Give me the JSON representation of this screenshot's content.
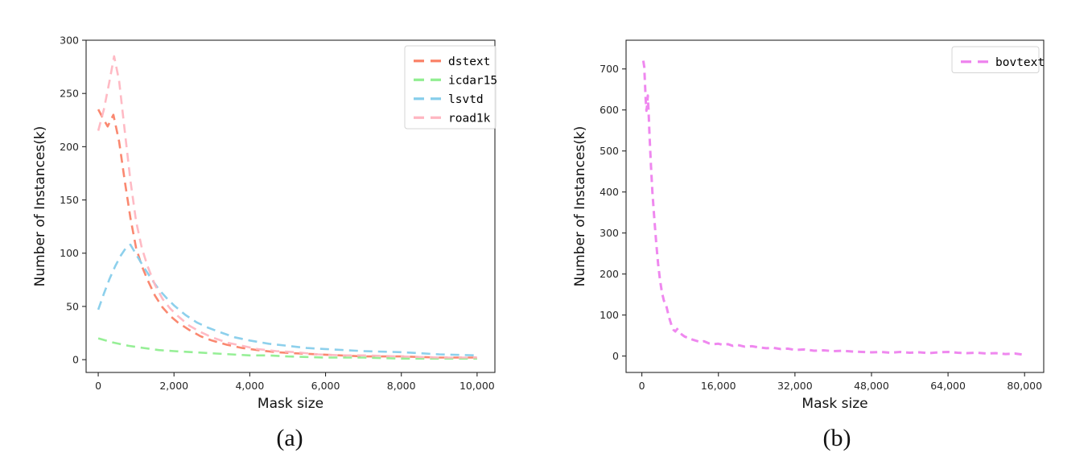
{
  "figure": {
    "background": "#ffffff",
    "axis_color": "#262626",
    "tick_label_color": "#262626",
    "captions": {
      "a": "(a)",
      "b": "(b)"
    }
  },
  "chart_data": [
    {
      "id": "a",
      "type": "line",
      "title": "",
      "xlabel": "Mask size",
      "ylabel": "Number of Instances(k)",
      "xlim": [
        -320,
        10470
      ],
      "ylim": [
        -12,
        300
      ],
      "xticks": [
        0,
        2000,
        4000,
        6000,
        8000,
        10000
      ],
      "xtick_labels": [
        "0",
        "2,000",
        "4,000",
        "6,000",
        "8,000",
        "10,000"
      ],
      "yticks": [
        0,
        50,
        100,
        150,
        200,
        250,
        300
      ],
      "ytick_labels": [
        "0",
        "50",
        "100",
        "150",
        "200",
        "250",
        "300"
      ],
      "grid": false,
      "legend_position": "upper right",
      "line_style": "dashed",
      "series": [
        {
          "name": "dstext",
          "color": "#fa8268",
          "points": [
            [
              0,
              235
            ],
            [
              120,
              227
            ],
            [
              250,
              219
            ],
            [
              400,
              230
            ],
            [
              550,
              205
            ],
            [
              700,
              168
            ],
            [
              850,
              133
            ],
            [
              1000,
              105
            ],
            [
              1150,
              88
            ],
            [
              1300,
              75
            ],
            [
              1500,
              60
            ],
            [
              1700,
              49
            ],
            [
              1900,
              41
            ],
            [
              2100,
              35
            ],
            [
              2400,
              28
            ],
            [
              2700,
              22
            ],
            [
              3000,
              18
            ],
            [
              3400,
              14
            ],
            [
              3800,
              11
            ],
            [
              4200,
              9
            ],
            [
              4700,
              7
            ],
            [
              5200,
              6
            ],
            [
              5800,
              5
            ],
            [
              6400,
              4
            ],
            [
              7000,
              3
            ],
            [
              8000,
              3
            ],
            [
              9000,
              2
            ],
            [
              10000,
              2
            ]
          ]
        },
        {
          "name": "icdar15",
          "color": "#90ee90",
          "points": [
            [
              0,
              20
            ],
            [
              400,
              16
            ],
            [
              800,
              13
            ],
            [
              1200,
              11
            ],
            [
              1600,
              9
            ],
            [
              2000,
              8
            ],
            [
              2500,
              7
            ],
            [
              3000,
              6
            ],
            [
              3500,
              5
            ],
            [
              4000,
              4
            ],
            [
              4500,
              4
            ],
            [
              5000,
              3
            ],
            [
              6000,
              2
            ],
            [
              7000,
              2
            ],
            [
              8000,
              1
            ],
            [
              9000,
              1
            ],
            [
              10000,
              1
            ]
          ]
        },
        {
          "name": "lsvtd",
          "color": "#87ceeb",
          "points": [
            [
              0,
              47
            ],
            [
              150,
              62
            ],
            [
              300,
              76
            ],
            [
              450,
              88
            ],
            [
              600,
              98
            ],
            [
              750,
              106
            ],
            [
              850,
              108
            ],
            [
              1000,
              99
            ],
            [
              1200,
              87
            ],
            [
              1400,
              76
            ],
            [
              1600,
              66
            ],
            [
              1800,
              58
            ],
            [
              2000,
              51
            ],
            [
              2300,
              42
            ],
            [
              2600,
              35
            ],
            [
              2900,
              30
            ],
            [
              3200,
              26
            ],
            [
              3600,
              21
            ],
            [
              4000,
              18
            ],
            [
              4500,
              15
            ],
            [
              5000,
              13
            ],
            [
              5500,
              11
            ],
            [
              6000,
              10
            ],
            [
              7000,
              8
            ],
            [
              8000,
              7
            ],
            [
              9000,
              5
            ],
            [
              10000,
              4
            ]
          ]
        },
        {
          "name": "road1k",
          "color": "#ffb6c1",
          "points": [
            [
              0,
              215
            ],
            [
              150,
              235
            ],
            [
              300,
              262
            ],
            [
              420,
              285
            ],
            [
              550,
              262
            ],
            [
              700,
              215
            ],
            [
              850,
              168
            ],
            [
              1000,
              130
            ],
            [
              1150,
              105
            ],
            [
              1300,
              88
            ],
            [
              1500,
              70
            ],
            [
              1700,
              57
            ],
            [
              1900,
              48
            ],
            [
              2100,
              41
            ],
            [
              2400,
              32
            ],
            [
              2700,
              26
            ],
            [
              3000,
              21
            ],
            [
              3400,
              16
            ],
            [
              3800,
              13
            ],
            [
              4200,
              10
            ],
            [
              4700,
              8
            ],
            [
              5200,
              7
            ],
            [
              5800,
              5
            ],
            [
              6400,
              4
            ],
            [
              7000,
              4
            ],
            [
              8000,
              3
            ],
            [
              9000,
              2
            ],
            [
              10000,
              2
            ]
          ]
        }
      ]
    },
    {
      "id": "b",
      "type": "line",
      "title": "",
      "xlabel": "Mask size",
      "ylabel": "Number of Instances(k)",
      "xlim": [
        -3300,
        84000
      ],
      "ylim": [
        -40,
        770
      ],
      "xticks": [
        0,
        16000,
        32000,
        48000,
        64000,
        80000
      ],
      "xtick_labels": [
        "0",
        "16,000",
        "32,000",
        "48,000",
        "64,000",
        "80,000"
      ],
      "yticks": [
        0,
        100,
        200,
        300,
        400,
        500,
        600,
        700
      ],
      "ytick_labels": [
        "0",
        "100",
        "200",
        "300",
        "400",
        "500",
        "600",
        "700"
      ],
      "grid": false,
      "legend_position": "upper right",
      "line_style": "dashed",
      "series": [
        {
          "name": "bovtext",
          "color": "#ee82ee",
          "points": [
            [
              300,
              720
            ],
            [
              500,
              705
            ],
            [
              650,
              665
            ],
            [
              800,
              625
            ],
            [
              950,
              598
            ],
            [
              1100,
              612
            ],
            [
              1250,
              635
            ],
            [
              1400,
              600
            ],
            [
              1600,
              540
            ],
            [
              1900,
              465
            ],
            [
              2200,
              400
            ],
            [
              2600,
              335
            ],
            [
              3000,
              275
            ],
            [
              3400,
              225
            ],
            [
              3800,
              185
            ],
            [
              4200,
              155
            ],
            [
              4600,
              135
            ],
            [
              5000,
              128
            ],
            [
              5400,
              108
            ],
            [
              5800,
              90
            ],
            [
              6200,
              75
            ],
            [
              6600,
              64
            ],
            [
              7000,
              60
            ],
            [
              7400,
              66
            ],
            [
              7800,
              58
            ],
            [
              8400,
              52
            ],
            [
              9000,
              47
            ],
            [
              9800,
              44
            ],
            [
              10600,
              40
            ],
            [
              11400,
              37
            ],
            [
              12200,
              34
            ],
            [
              13000,
              36
            ],
            [
              14000,
              31
            ],
            [
              15000,
              29
            ],
            [
              16000,
              30
            ],
            [
              17000,
              27
            ],
            [
              18000,
              29
            ],
            [
              19000,
              25
            ],
            [
              20000,
              27
            ],
            [
              21500,
              23
            ],
            [
              23000,
              24
            ],
            [
              24500,
              21
            ],
            [
              26000,
              19
            ],
            [
              27500,
              20
            ],
            [
              29000,
              17
            ],
            [
              30500,
              18
            ],
            [
              32000,
              15
            ],
            [
              34000,
              16
            ],
            [
              36000,
              13
            ],
            [
              38000,
              14
            ],
            [
              40000,
              12
            ],
            [
              42000,
              13
            ],
            [
              44000,
              11
            ],
            [
              46000,
              10
            ],
            [
              48000,
              9
            ],
            [
              50000,
              10
            ],
            [
              52000,
              8
            ],
            [
              54000,
              10
            ],
            [
              56000,
              8
            ],
            [
              58000,
              9
            ],
            [
              60000,
              7
            ],
            [
              62000,
              9
            ],
            [
              64000,
              10
            ],
            [
              66000,
              8
            ],
            [
              68000,
              7
            ],
            [
              70000,
              8
            ],
            [
              72000,
              6
            ],
            [
              74000,
              7
            ],
            [
              76000,
              5
            ],
            [
              78000,
              6
            ],
            [
              80000,
              3
            ]
          ]
        }
      ]
    }
  ]
}
